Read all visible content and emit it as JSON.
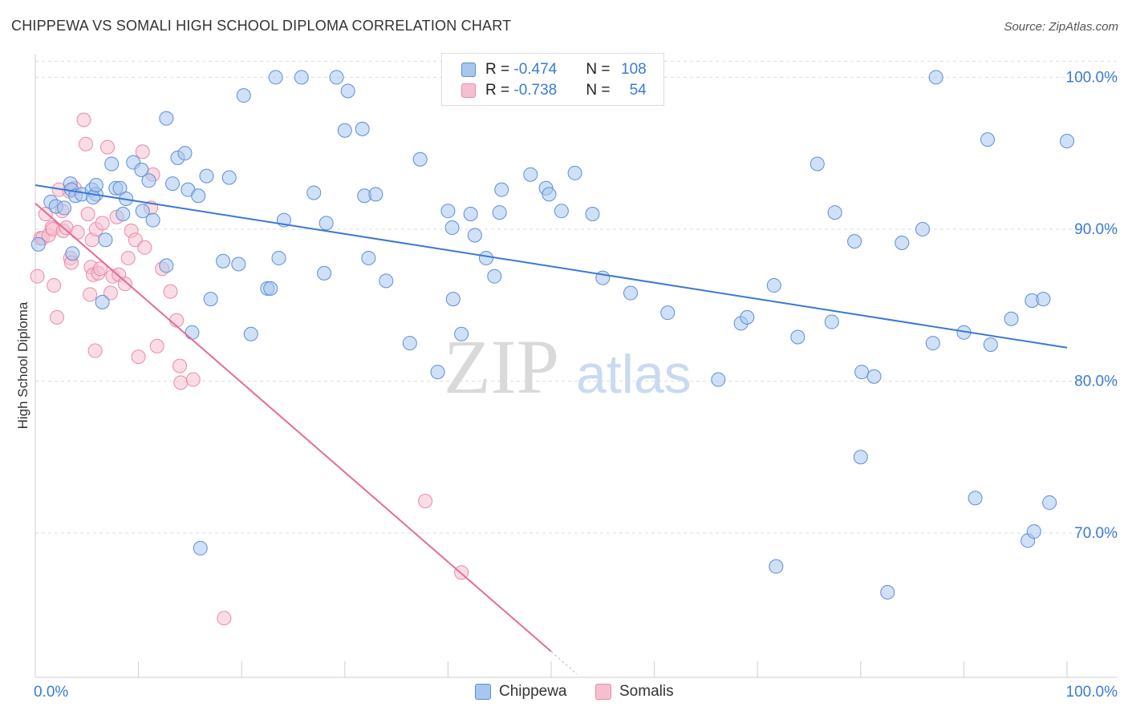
{
  "title": "CHIPPEWA VS SOMALI HIGH SCHOOL DIPLOMA CORRELATION CHART",
  "source": "Source: ZipAtlas.com",
  "watermark": {
    "zip": "ZIP",
    "atlas": "atlas"
  },
  "colors": {
    "chippewa_fill": "#a9c6ee",
    "chippewa_stroke": "#5b8fd6",
    "chippewa_line": "#3a78d4",
    "somali_fill": "#f6bfd0",
    "somali_stroke": "#e98aa9",
    "somali_line": "#e56b97",
    "value_blue": "#3a7bd5",
    "grid": "#dddddd"
  },
  "legend": {
    "rows": [
      {
        "r_label": "R = ",
        "r_value": "-0.474",
        "n_label": "N = ",
        "n_value": "108"
      },
      {
        "r_label": "R = ",
        "r_value": "-0.738",
        "n_label": "N = ",
        "n_value": "54"
      }
    ]
  },
  "chart_data": {
    "type": "scatter",
    "title": "CHIPPEWA VS SOMALI HIGH SCHOOL DIPLOMA CORRELATION CHART",
    "xlabel": "",
    "ylabel": "High School Diploma",
    "xlim": [
      0,
      100
    ],
    "ylim": [
      60.5,
      101.5
    ],
    "x_tick_labels": [
      "0.0%",
      "100.0%"
    ],
    "y_ticks": [
      70,
      80,
      90,
      100
    ],
    "y_tick_labels": [
      "70.0%",
      "80.0%",
      "90.0%",
      "100.0%"
    ],
    "grid": true,
    "legend_position": "top-center",
    "series": [
      {
        "name": "Chippewa",
        "trend": {
          "x": [
            0,
            100
          ],
          "y": [
            92.9,
            82.2
          ]
        },
        "points": [
          [
            0.3,
            89.0
          ],
          [
            1.5,
            91.8
          ],
          [
            2.0,
            91.5
          ],
          [
            2.8,
            91.4
          ],
          [
            3.4,
            93.0
          ],
          [
            3.5,
            92.6
          ],
          [
            3.6,
            88.4
          ],
          [
            3.9,
            92.2
          ],
          [
            4.5,
            92.3
          ],
          [
            5.5,
            92.6
          ],
          [
            5.9,
            92.3
          ],
          [
            5.6,
            92.1
          ],
          [
            5.9,
            92.9
          ],
          [
            6.5,
            85.2
          ],
          [
            6.8,
            89.3
          ],
          [
            7.4,
            94.3
          ],
          [
            7.8,
            92.7
          ],
          [
            8.2,
            92.7
          ],
          [
            8.5,
            91.0
          ],
          [
            8.8,
            92.0
          ],
          [
            9.5,
            94.4
          ],
          [
            10.3,
            93.9
          ],
          [
            10.4,
            91.2
          ],
          [
            11.0,
            93.2
          ],
          [
            11.4,
            90.6
          ],
          [
            12.7,
            97.3
          ],
          [
            12.7,
            87.6
          ],
          [
            13.3,
            93.0
          ],
          [
            13.8,
            94.7
          ],
          [
            14.5,
            95.0
          ],
          [
            14.8,
            92.6
          ],
          [
            15.2,
            83.2
          ],
          [
            15.8,
            92.2
          ],
          [
            16.0,
            69.0
          ],
          [
            16.6,
            93.5
          ],
          [
            17.0,
            85.4
          ],
          [
            18.2,
            87.9
          ],
          [
            18.8,
            93.4
          ],
          [
            19.7,
            87.7
          ],
          [
            20.2,
            98.8
          ],
          [
            20.9,
            83.1
          ],
          [
            22.5,
            86.1
          ],
          [
            22.8,
            86.1
          ],
          [
            23.3,
            100.0
          ],
          [
            23.6,
            88.1
          ],
          [
            24.1,
            90.6
          ],
          [
            25.8,
            100.0
          ],
          [
            27.0,
            92.4
          ],
          [
            28.0,
            87.1
          ],
          [
            28.2,
            90.4
          ],
          [
            29.2,
            100.0
          ],
          [
            30.0,
            96.5
          ],
          [
            30.3,
            99.1
          ],
          [
            31.7,
            96.6
          ],
          [
            31.9,
            92.2
          ],
          [
            32.3,
            88.1
          ],
          [
            33.0,
            92.3
          ],
          [
            34.0,
            86.6
          ],
          [
            36.3,
            82.5
          ],
          [
            37.3,
            94.6
          ],
          [
            39.0,
            80.6
          ],
          [
            40.0,
            91.2
          ],
          [
            40.4,
            90.1
          ],
          [
            40.5,
            85.4
          ],
          [
            41.3,
            83.1
          ],
          [
            42.2,
            91.0
          ],
          [
            42.6,
            89.6
          ],
          [
            43.7,
            88.1
          ],
          [
            44.5,
            86.9
          ],
          [
            45.0,
            91.1
          ],
          [
            45.2,
            92.6
          ],
          [
            48.0,
            93.6
          ],
          [
            49.5,
            92.7
          ],
          [
            49.8,
            92.3
          ],
          [
            51.0,
            91.2
          ],
          [
            52.3,
            93.7
          ],
          [
            54.0,
            91.0
          ],
          [
            55.0,
            86.8
          ],
          [
            57.7,
            85.8
          ],
          [
            61.3,
            84.5
          ],
          [
            66.2,
            80.1
          ],
          [
            68.4,
            83.8
          ],
          [
            69.0,
            84.2
          ],
          [
            71.8,
            67.8
          ],
          [
            71.6,
            86.3
          ],
          [
            73.9,
            82.9
          ],
          [
            75.8,
            94.3
          ],
          [
            77.2,
            83.9
          ],
          [
            77.5,
            91.1
          ],
          [
            79.4,
            89.2
          ],
          [
            80.0,
            75.0
          ],
          [
            80.1,
            80.6
          ],
          [
            81.3,
            80.3
          ],
          [
            82.6,
            66.1
          ],
          [
            84.0,
            89.1
          ],
          [
            86.0,
            90.0
          ],
          [
            87.0,
            82.5
          ],
          [
            87.3,
            100.0
          ],
          [
            90.0,
            83.2
          ],
          [
            91.1,
            72.3
          ],
          [
            92.3,
            95.9
          ],
          [
            92.6,
            82.4
          ],
          [
            94.6,
            84.1
          ],
          [
            96.2,
            69.5
          ],
          [
            96.6,
            85.3
          ],
          [
            96.8,
            70.1
          ],
          [
            97.7,
            85.4
          ],
          [
            98.3,
            72.0
          ],
          [
            100.0,
            95.8
          ]
        ]
      },
      {
        "name": "Somalis",
        "trend": {
          "x": [
            0,
            50
          ],
          "y": [
            91.7,
            62.2
          ]
        },
        "trend_dashed": {
          "x": [
            50,
            52.5
          ],
          "y": [
            62.2,
            60.7
          ]
        },
        "points": [
          [
            0.2,
            86.9
          ],
          [
            0.5,
            89.4
          ],
          [
            0.7,
            89.4
          ],
          [
            1.0,
            91.0
          ],
          [
            1.3,
            89.6
          ],
          [
            1.6,
            90.1
          ],
          [
            1.7,
            90.0
          ],
          [
            1.8,
            86.3
          ],
          [
            2.1,
            84.2
          ],
          [
            2.3,
            92.6
          ],
          [
            2.6,
            91.2
          ],
          [
            2.7,
            89.9
          ],
          [
            3.0,
            90.1
          ],
          [
            3.3,
            92.5
          ],
          [
            3.4,
            88.1
          ],
          [
            3.5,
            87.8
          ],
          [
            3.8,
            92.7
          ],
          [
            4.1,
            89.8
          ],
          [
            4.7,
            97.2
          ],
          [
            4.9,
            95.6
          ],
          [
            5.1,
            91.0
          ],
          [
            5.3,
            85.7
          ],
          [
            5.4,
            87.5
          ],
          [
            5.5,
            89.3
          ],
          [
            5.6,
            87.0
          ],
          [
            5.8,
            82.0
          ],
          [
            5.9,
            90.0
          ],
          [
            6.1,
            87.1
          ],
          [
            6.3,
            87.4
          ],
          [
            6.5,
            90.4
          ],
          [
            7.0,
            95.4
          ],
          [
            7.3,
            85.8
          ],
          [
            7.5,
            86.9
          ],
          [
            7.9,
            90.8
          ],
          [
            8.1,
            87.0
          ],
          [
            8.7,
            86.4
          ],
          [
            9.0,
            88.1
          ],
          [
            9.3,
            89.9
          ],
          [
            9.7,
            89.3
          ],
          [
            10.0,
            81.6
          ],
          [
            10.4,
            95.1
          ],
          [
            10.6,
            88.8
          ],
          [
            11.2,
            91.4
          ],
          [
            11.4,
            93.6
          ],
          [
            11.8,
            82.3
          ],
          [
            12.3,
            87.4
          ],
          [
            13.1,
            85.9
          ],
          [
            13.7,
            84.0
          ],
          [
            14.0,
            81.0
          ],
          [
            14.1,
            79.9
          ],
          [
            15.3,
            80.1
          ],
          [
            18.3,
            64.4
          ],
          [
            37.8,
            72.1
          ],
          [
            41.3,
            67.4
          ]
        ]
      }
    ]
  }
}
